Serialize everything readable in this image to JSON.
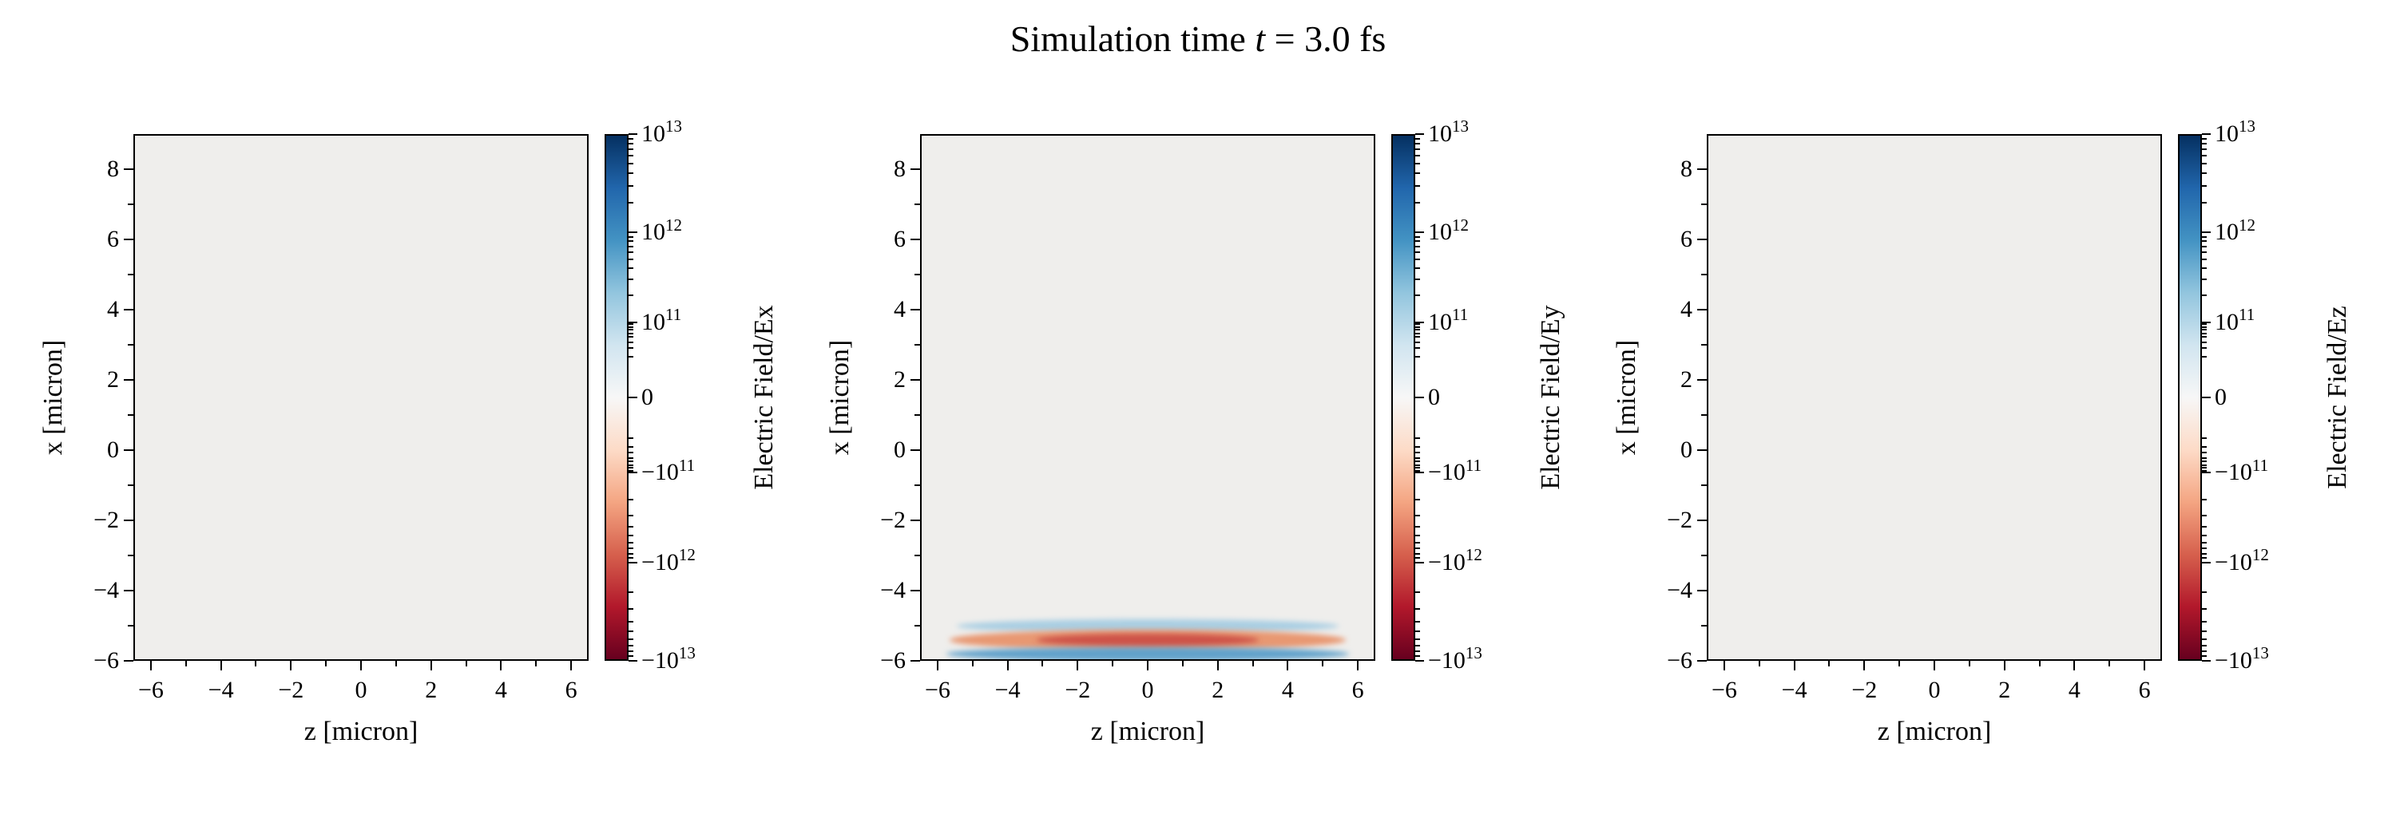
{
  "header": {
    "title_pre": "Simulation time ",
    "title_var": "t",
    "title_post": " = 3.0 fs"
  },
  "chart_data": {
    "type": "heatmap",
    "title": "Simulation time t = 3.0 fs",
    "layout": "3 horizontal panels, each with vertical colorbar on right",
    "xlim": [
      -6.5,
      6.5
    ],
    "ylim": [
      -6,
      9
    ],
    "xticks": {
      "values": [
        -6,
        -4,
        -2,
        0,
        2,
        4,
        6
      ],
      "labels": [
        "−6",
        "−4",
        "−2",
        "0",
        "2",
        "4",
        "6"
      ]
    },
    "yticks": {
      "values": [
        -6,
        -4,
        -2,
        0,
        2,
        4,
        6,
        8
      ],
      "labels": [
        "−6",
        "−4",
        "−2",
        "0",
        "2",
        "4",
        "6",
        "8"
      ]
    },
    "x_minor_ticks": [
      -5,
      -3,
      -1,
      1,
      3,
      5
    ],
    "y_minor_ticks": [
      -5,
      -3,
      -1,
      1,
      3,
      5,
      7
    ],
    "plot_background": "#efeeec",
    "colorbar": {
      "scale": "symlog",
      "vmin": -10000000000000.0,
      "vmax": 10000000000000.0,
      "ticks": [
        {
          "label": "10^13",
          "t": 0
        },
        {
          "label": "10^12",
          "t": 0.187
        },
        {
          "label": "10^11",
          "t": 0.357
        },
        {
          "label": "0",
          "t": 0.5
        },
        {
          "label": "−10^11",
          "t": 0.643
        },
        {
          "label": "−10^12",
          "t": 0.813
        },
        {
          "label": "−10^13",
          "t": 1
        }
      ],
      "minor_decade_segments": [
        [
          0,
          0.187
        ],
        [
          0.187,
          0.357
        ],
        [
          0.357,
          0.452
        ]
      ],
      "colormap": [
        "#053061",
        "#2166ac",
        "#4393c3",
        "#92c5de",
        "#d1e5f0",
        "#f7f7f7",
        "#fddbc7",
        "#f4a582",
        "#d6604d",
        "#b2182b",
        "#67001f"
      ]
    },
    "panels": [
      {
        "id": "ex",
        "colorbar_label": "Electric Field/Ex",
        "xlabel": "z [micron]",
        "ylabel": "x [micron]"
      },
      {
        "id": "ey",
        "colorbar_label": "Electric Field/Ey",
        "xlabel": "z [micron]",
        "ylabel": "x [micron]",
        "pulse": {
          "bands": [
            {
              "z_center": 0,
              "x_center": -5.05,
              "z_halfwidth": 5.5,
              "half_thickness": 0.2,
              "color": "#9ec9e2",
              "opacity": 0.85
            },
            {
              "z_center": 0,
              "x_center": -5.45,
              "z_halfwidth": 5.7,
              "half_thickness": 0.3,
              "color": "#e8936c",
              "opacity": 0.95
            },
            {
              "z_center": 0,
              "x_center": -5.45,
              "z_halfwidth": 3.2,
              "half_thickness": 0.18,
              "color": "#cb4a42",
              "opacity": 0.9
            },
            {
              "z_center": 0,
              "x_center": -5.85,
              "z_halfwidth": 5.8,
              "half_thickness": 0.2,
              "color": "#5b9ec9",
              "opacity": 0.95
            }
          ]
        }
      },
      {
        "id": "ez",
        "colorbar_label": "Electric Field/Ez",
        "xlabel": "z [micron]",
        "ylabel": "x [micron]"
      }
    ]
  }
}
